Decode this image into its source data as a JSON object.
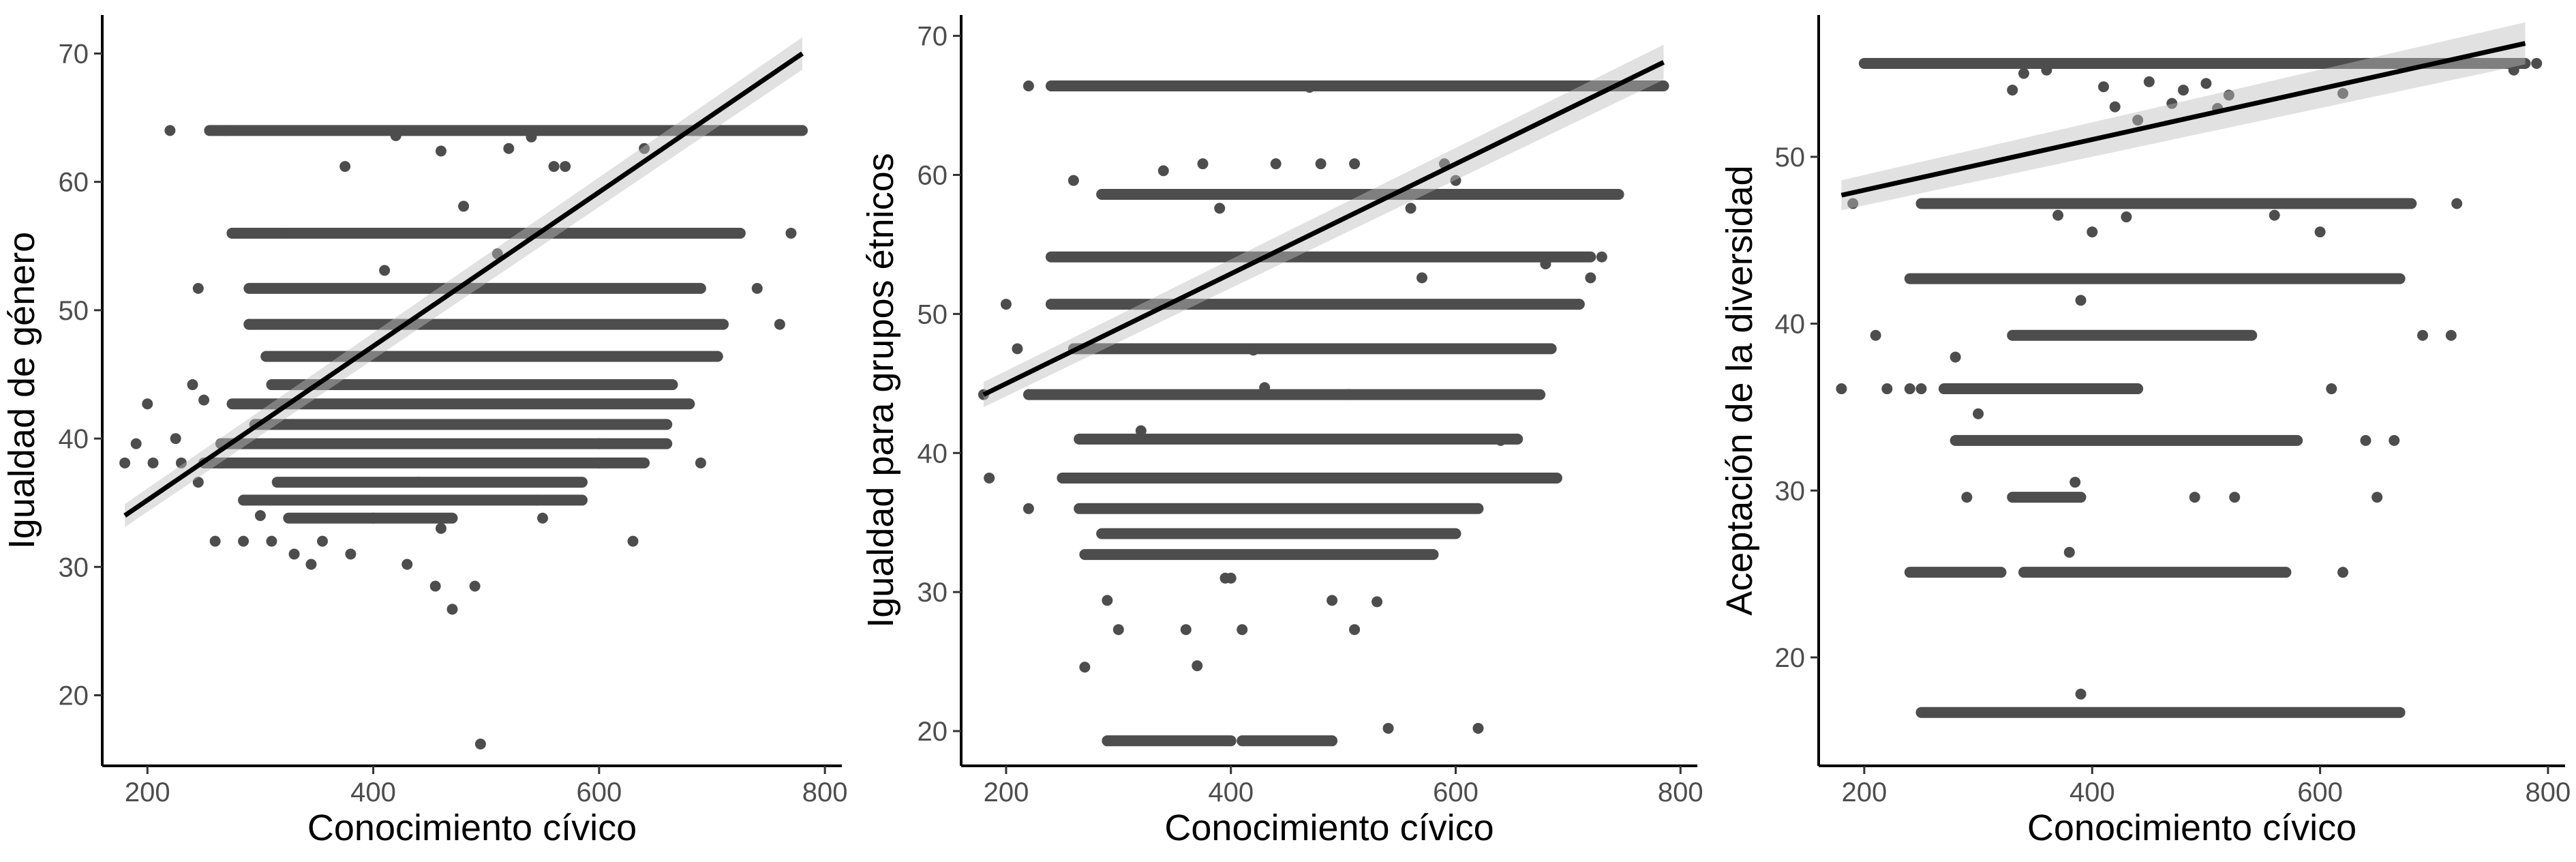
{
  "chart_data": [
    {
      "type": "scatter",
      "xlabel": "Conocimiento cívico",
      "ylabel": "Igualdad de género",
      "xlim": [
        160,
        815
      ],
      "ylim": [
        14.5,
        73
      ],
      "xticks": [
        200,
        400,
        600,
        800
      ],
      "yticks": [
        20,
        30,
        40,
        50,
        60,
        70
      ],
      "grid": false,
      "point_color": "#4d4d4d",
      "bands": [
        {
          "y": 64.0,
          "x": [
            255,
            780
          ]
        },
        {
          "y": 56.0,
          "x": [
            275,
            725
          ]
        },
        {
          "y": 51.7,
          "x": [
            290,
            690
          ]
        },
        {
          "y": 48.9,
          "x": [
            290,
            710
          ]
        },
        {
          "y": 46.4,
          "x": [
            305,
            705
          ]
        },
        {
          "y": 44.2,
          "x": [
            310,
            665
          ]
        },
        {
          "y": 42.7,
          "x": [
            275,
            680
          ]
        },
        {
          "y": 41.1,
          "x": [
            295,
            660
          ]
        },
        {
          "y": 39.6,
          "x": [
            265,
            660
          ]
        },
        {
          "y": 38.1,
          "x": [
            250,
            640
          ]
        },
        {
          "y": 36.6,
          "x": [
            315,
            585
          ]
        },
        {
          "y": 35.2,
          "x": [
            285,
            585
          ]
        },
        {
          "y": 33.8,
          "x": [
            325,
            470
          ]
        }
      ],
      "points": [
        [
          180,
          38.1
        ],
        [
          190,
          39.6
        ],
        [
          200,
          42.7
        ],
        [
          205,
          38.1
        ],
        [
          220,
          64.0
        ],
        [
          225,
          40.0
        ],
        [
          230,
          38.1
        ],
        [
          240,
          44.2
        ],
        [
          245,
          36.6
        ],
        [
          245,
          51.7
        ],
        [
          250,
          43.0
        ],
        [
          260,
          32.0
        ],
        [
          270,
          64.0
        ],
        [
          275,
          56.0
        ],
        [
          285,
          32.0
        ],
        [
          290,
          48.9
        ],
        [
          300,
          34.0
        ],
        [
          310,
          32.0
        ],
        [
          320,
          56.0
        ],
        [
          330,
          31.0
        ],
        [
          345,
          30.2
        ],
        [
          355,
          32.0
        ],
        [
          375,
          61.2
        ],
        [
          380,
          31.0
        ],
        [
          400,
          33.8
        ],
        [
          410,
          53.1
        ],
        [
          420,
          63.6
        ],
        [
          430,
          30.2
        ],
        [
          440,
          36.6
        ],
        [
          455,
          28.5
        ],
        [
          460,
          62.4
        ],
        [
          460,
          33.0
        ],
        [
          470,
          26.7
        ],
        [
          480,
          58.1
        ],
        [
          490,
          28.5
        ],
        [
          495,
          16.2
        ],
        [
          510,
          54.4
        ],
        [
          520,
          62.6
        ],
        [
          540,
          63.5
        ],
        [
          545,
          35.2
        ],
        [
          550,
          33.8
        ],
        [
          560,
          61.2
        ],
        [
          570,
          61.2
        ],
        [
          600,
          39.6
        ],
        [
          600,
          38.1
        ],
        [
          630,
          32.0
        ],
        [
          640,
          62.6
        ],
        [
          690,
          38.1
        ],
        [
          740,
          51.7
        ],
        [
          760,
          48.9
        ],
        [
          770,
          56.0
        ]
      ],
      "fit": {
        "x": [
          180,
          780
        ],
        "y": [
          34.0,
          70.0
        ]
      }
    },
    {
      "type": "scatter",
      "xlabel": "Conocimiento cívico",
      "ylabel": "Igualdad para grupos étnicos",
      "xlim": [
        160,
        815
      ],
      "ylim": [
        17.5,
        71.5
      ],
      "xticks": [
        200,
        400,
        600,
        800
      ],
      "yticks": [
        20,
        30,
        40,
        50,
        60,
        70
      ],
      "grid": false,
      "point_color": "#4d4d4d",
      "bands": [
        {
          "y": 66.4,
          "x": [
            240,
            785
          ]
        },
        {
          "y": 58.6,
          "x": [
            285,
            745
          ]
        },
        {
          "y": 54.1,
          "x": [
            240,
            720
          ]
        },
        {
          "y": 50.7,
          "x": [
            240,
            710
          ]
        },
        {
          "y": 47.5,
          "x": [
            260,
            685
          ]
        },
        {
          "y": 44.2,
          "x": [
            220,
            675
          ]
        },
        {
          "y": 41.0,
          "x": [
            265,
            655
          ]
        },
        {
          "y": 38.2,
          "x": [
            250,
            690
          ]
        },
        {
          "y": 36.0,
          "x": [
            265,
            620
          ]
        },
        {
          "y": 34.2,
          "x": [
            285,
            600
          ]
        },
        {
          "y": 32.7,
          "x": [
            270,
            580
          ]
        },
        {
          "y": 19.3,
          "x": [
            290,
            400
          ]
        },
        {
          "y": 19.3,
          "x": [
            410,
            490
          ]
        }
      ],
      "points": [
        [
          180,
          44.2
        ],
        [
          185,
          38.2
        ],
        [
          200,
          50.7
        ],
        [
          210,
          47.5
        ],
        [
          220,
          36.0
        ],
        [
          220,
          66.4
        ],
        [
          260,
          59.6
        ],
        [
          270,
          24.6
        ],
        [
          290,
          29.4
        ],
        [
          300,
          27.3
        ],
        [
          320,
          41.6
        ],
        [
          340,
          60.3
        ],
        [
          360,
          27.3
        ],
        [
          370,
          24.7
        ],
        [
          375,
          60.8
        ],
        [
          390,
          57.6
        ],
        [
          395,
          31.0
        ],
        [
          400,
          31.0
        ],
        [
          410,
          27.3
        ],
        [
          420,
          47.4
        ],
        [
          430,
          44.7
        ],
        [
          440,
          60.8
        ],
        [
          470,
          66.3
        ],
        [
          480,
          60.8
        ],
        [
          490,
          29.4
        ],
        [
          505,
          44.2
        ],
        [
          510,
          27.3
        ],
        [
          510,
          60.8
        ],
        [
          530,
          29.3
        ],
        [
          540,
          20.2
        ],
        [
          560,
          57.6
        ],
        [
          570,
          52.6
        ],
        [
          590,
          60.8
        ],
        [
          600,
          59.6
        ],
        [
          620,
          20.2
        ],
        [
          640,
          40.9
        ],
        [
          680,
          53.6
        ],
        [
          700,
          66.4
        ],
        [
          720,
          52.6
        ],
        [
          730,
          54.1
        ]
      ],
      "fit": {
        "x": [
          180,
          785
        ],
        "y": [
          44.2,
          68.1
        ]
      }
    },
    {
      "type": "scatter",
      "xlabel": "Conocimiento cívico",
      "ylabel": "Aceptación de la diversidad",
      "xlim": [
        160,
        815
      ],
      "ylim": [
        13.5,
        58.5
      ],
      "xticks": [
        200,
        400,
        600,
        800
      ],
      "yticks": [
        20,
        30,
        40,
        50
      ],
      "grid": false,
      "point_color": "#4d4d4d",
      "bands": [
        {
          "y": 55.6,
          "x": [
            200,
            780
          ]
        },
        {
          "y": 47.2,
          "x": [
            250,
            680
          ]
        },
        {
          "y": 42.7,
          "x": [
            240,
            670
          ]
        },
        {
          "y": 39.3,
          "x": [
            330,
            540
          ]
        },
        {
          "y": 36.1,
          "x": [
            270,
            440
          ]
        },
        {
          "y": 33.0,
          "x": [
            280,
            580
          ]
        },
        {
          "y": 29.6,
          "x": [
            330,
            390
          ]
        },
        {
          "y": 25.1,
          "x": [
            240,
            320
          ]
        },
        {
          "y": 25.1,
          "x": [
            340,
            570
          ]
        },
        {
          "y": 16.7,
          "x": [
            250,
            670
          ]
        }
      ],
      "points": [
        [
          180,
          36.1
        ],
        [
          190,
          47.2
        ],
        [
          210,
          39.3
        ],
        [
          220,
          36.1
        ],
        [
          240,
          36.1
        ],
        [
          250,
          36.1
        ],
        [
          280,
          38.0
        ],
        [
          290,
          29.6
        ],
        [
          300,
          34.6
        ],
        [
          330,
          54.0
        ],
        [
          340,
          55.0
        ],
        [
          360,
          55.2
        ],
        [
          370,
          46.5
        ],
        [
          380,
          26.3
        ],
        [
          385,
          30.5
        ],
        [
          390,
          17.8
        ],
        [
          390,
          41.4
        ],
        [
          400,
          45.5
        ],
        [
          410,
          54.2
        ],
        [
          420,
          53.0
        ],
        [
          430,
          46.4
        ],
        [
          440,
          52.2
        ],
        [
          450,
          54.5
        ],
        [
          470,
          53.2
        ],
        [
          480,
          54.0
        ],
        [
          490,
          29.6
        ],
        [
          500,
          54.4
        ],
        [
          510,
          52.9
        ],
        [
          520,
          53.7
        ],
        [
          525,
          29.6
        ],
        [
          560,
          46.5
        ],
        [
          600,
          45.5
        ],
        [
          610,
          36.1
        ],
        [
          620,
          53.8
        ],
        [
          620,
          25.1
        ],
        [
          640,
          33.0
        ],
        [
          650,
          29.6
        ],
        [
          665,
          33.0
        ],
        [
          690,
          39.3
        ],
        [
          715,
          39.3
        ],
        [
          720,
          47.2
        ],
        [
          760,
          55.6
        ],
        [
          770,
          55.2
        ],
        [
          790,
          55.6
        ]
      ],
      "fit": {
        "x": [
          180,
          780
        ],
        "y": [
          47.7,
          56.8
        ]
      }
    }
  ]
}
